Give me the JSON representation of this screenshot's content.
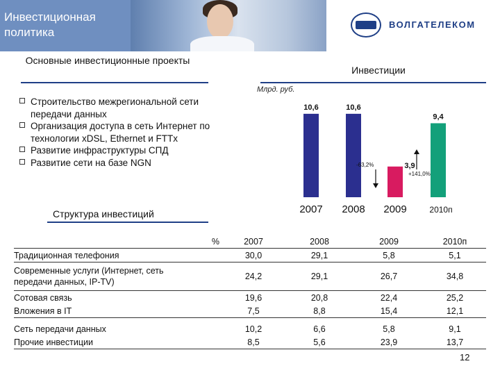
{
  "header": {
    "title": "Инвестиционная политика",
    "logo_text": "ВОЛГАТЕЛЕКОМ"
  },
  "projects": {
    "title": "Основные инвестиционные проекты",
    "items": [
      "Строительство межрегиональной сети передачи данных",
      "Организация доступа  в сеть Интернет по технологии xDSL, Ethernet и FTTx",
      "Развитие инфраструктуры СПД",
      "Развитие сети на базе NGN"
    ]
  },
  "investments": {
    "title": "Инвестиции"
  },
  "chart_data": {
    "type": "bar",
    "unit_label": "Млрд. руб.",
    "categories": [
      "2007",
      "2008",
      "2009",
      "2010п"
    ],
    "values": [
      10.6,
      10.6,
      3.9,
      9.4
    ],
    "value_labels": [
      "10,6",
      "10,6",
      "3,9",
      "9,4"
    ],
    "colors": [
      "#2b2f8f",
      "#2b2f8f",
      "#d81b60",
      "#13a07a"
    ],
    "ylim": [
      0,
      12
    ],
    "annotations": [
      {
        "text": "-63,2%",
        "direction": "down",
        "between": [
          "2008",
          "2009"
        ]
      },
      {
        "text": "+141,0%",
        "direction": "up",
        "between": [
          "2009",
          "2010п"
        ]
      }
    ]
  },
  "structure": {
    "title": "Структура инвестиций",
    "unit_header": "%",
    "years": [
      "2007",
      "2008",
      "2009",
      "2010п"
    ],
    "rows": [
      {
        "label": "Традиционная телефония",
        "values": [
          "30,0",
          "29,1",
          "5,8",
          "5,1"
        ]
      },
      {
        "label": "Современные услуги (Интернет, сеть передачи данных, IP-TV)",
        "values": [
          "24,2",
          "29,1",
          "26,7",
          "34,8"
        ]
      },
      {
        "label": "Сотовая связь",
        "values": [
          "19,6",
          "20,8",
          "22,4",
          "25,2"
        ]
      },
      {
        "label": "Вложения в IT",
        "values": [
          "7,5",
          "8,8",
          "15,4",
          "12,1"
        ]
      },
      {
        "label": "Сеть передачи данных",
        "values": [
          "10,2",
          "6,6",
          "5,8",
          "9,1"
        ]
      },
      {
        "label": "Прочие инвестиции",
        "values": [
          "8,5",
          "5,6",
          "23,9",
          "13,7"
        ]
      }
    ]
  },
  "page_number": "12"
}
